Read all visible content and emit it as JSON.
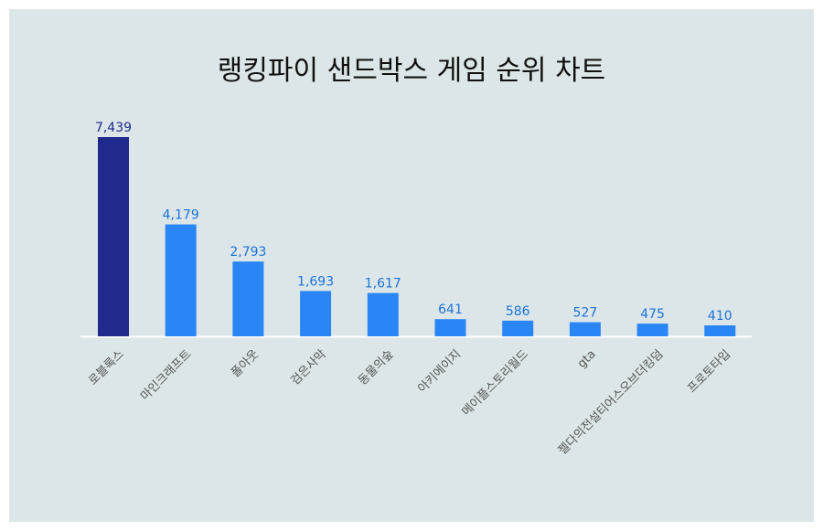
{
  "chart_data": {
    "type": "bar",
    "title": "랭킹파이 샌드박스 게임 순위 차트",
    "categories": [
      "로블록스",
      "마인크래프트",
      "폴아웃",
      "검은사막",
      "동물의숲",
      "아키에이지",
      "메이플스토리월드",
      "gta",
      "젤다의전설티어스오브더킹덤",
      "프로토타입"
    ],
    "values": [
      7439,
      4179,
      2793,
      1693,
      1617,
      641,
      586,
      527,
      475,
      410
    ],
    "data_labels": [
      "7,439",
      "4,179",
      "2,793",
      "1,693",
      "1,617",
      "641",
      "586",
      "527",
      "475",
      "410"
    ],
    "colors": {
      "highlight": "#1f2a8c",
      "bar": "#2a86f5",
      "highlight_label": "#1f2a8c",
      "label": "#1a73d9",
      "axis_label": "#555555",
      "background": "#dce6e8"
    },
    "grid": false,
    "legend": "none"
  }
}
